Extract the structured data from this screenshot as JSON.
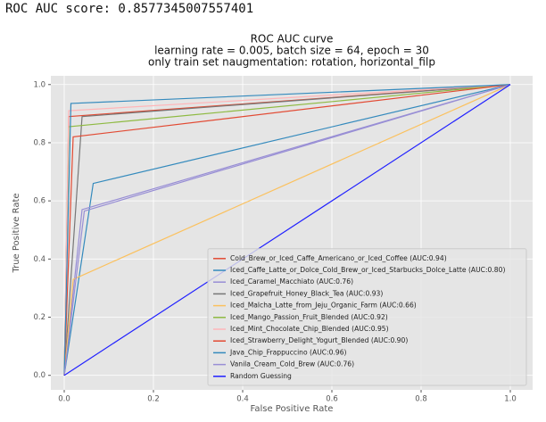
{
  "output_text": "ROC AUC score: 0.8577345007557401",
  "chart_data": {
    "type": "line",
    "title": [
      "ROC AUC curve",
      "learning rate = 0.005, batch size = 64, epoch = 30",
      "only train set naugmentation: rotation, horizontal_filp"
    ],
    "x_label": "False Positive Rate",
    "y_label": "True Positive Rate",
    "xlim": [
      -0.03,
      1.05
    ],
    "ylim": [
      -0.05,
      1.03
    ],
    "xticks": [
      {
        "value": 0,
        "label": "0.0"
      },
      {
        "value": 0.2,
        "label": "0.2"
      },
      {
        "value": 0.4,
        "label": "0.4"
      },
      {
        "value": 0.6,
        "label": "0.6"
      },
      {
        "value": 0.8,
        "label": "0.8"
      },
      {
        "value": 1,
        "label": "1.0"
      }
    ],
    "yticks": [
      {
        "value": 0,
        "label": "0.0"
      },
      {
        "value": 0.2,
        "label": "0.2"
      },
      {
        "value": 0.4,
        "label": "0.4"
      },
      {
        "value": 0.6,
        "label": "0.6"
      },
      {
        "value": 0.8,
        "label": "0.8"
      },
      {
        "value": 1,
        "label": "1.0"
      }
    ],
    "grid": true,
    "legend": "lower right",
    "series": [
      {
        "name": "Cold_Brew_or_Iced_Caffe_Americano_or_Iced_Coffee (AUC:0.94)",
        "color": "#E24A33",
        "x": [
          0,
          0.01,
          1
        ],
        "values": [
          0,
          0.89,
          1
        ]
      },
      {
        "name": "Iced_Caffe_Latte_or_Dolce_Cold_Brew_or_Iced_Starbucks_Dolce_Latte (AUC:0.80)",
        "color": "#348ABD",
        "x": [
          0,
          0.065,
          1
        ],
        "values": [
          0,
          0.66,
          1
        ]
      },
      {
        "name": "Iced_Caramel_Macchiato (AUC:0.76)",
        "color": "#988ED5",
        "x": [
          0,
          0.04,
          1
        ],
        "values": [
          0,
          0.57,
          1
        ]
      },
      {
        "name": "Iced_Grapefruit_Honey_Black_Tea (AUC:0.93)",
        "color": "#777777",
        "x": [
          0,
          0.04,
          1
        ],
        "values": [
          0,
          0.89,
          1
        ]
      },
      {
        "name": "Iced_Malcha_Latte_from_Jeju_Organic_Farm (AUC:0.66)",
        "color": "#FBC15E",
        "x": [
          0,
          0.02,
          1
        ],
        "values": [
          0,
          0.33,
          1
        ]
      },
      {
        "name": "Iced_Mango_Passion_Fruit_Blended (AUC:0.92)",
        "color": "#8EBA42",
        "x": [
          0,
          0.01,
          1
        ],
        "values": [
          0,
          0.855,
          1
        ]
      },
      {
        "name": "Iced_Mint_Chocolate_Chip_Blended (AUC:0.95)",
        "color": "#FFB5B8",
        "x": [
          0,
          0.01,
          1
        ],
        "values": [
          0,
          0.91,
          1
        ]
      },
      {
        "name": "Iced_Strawberry_Delight_Yogurt_Blended (AUC:0.90)",
        "color": "#E24A33",
        "x": [
          0,
          0.02,
          1
        ],
        "values": [
          0,
          0.82,
          1
        ]
      },
      {
        "name": "Java_Chip_Frappuccino (AUC:0.96)",
        "color": "#348ABD",
        "x": [
          0,
          0.015,
          1
        ],
        "values": [
          0,
          0.935,
          1
        ]
      },
      {
        "name": "Vanila_Cream_Cold_Brew (AUC:0.76)",
        "color": "#988ED5",
        "x": [
          0,
          0.045,
          1
        ],
        "values": [
          0,
          0.565,
          1
        ]
      },
      {
        "name": "Random Guessing",
        "color": "#1f1fff",
        "x": [
          0,
          1
        ],
        "values": [
          0,
          1
        ]
      }
    ]
  }
}
